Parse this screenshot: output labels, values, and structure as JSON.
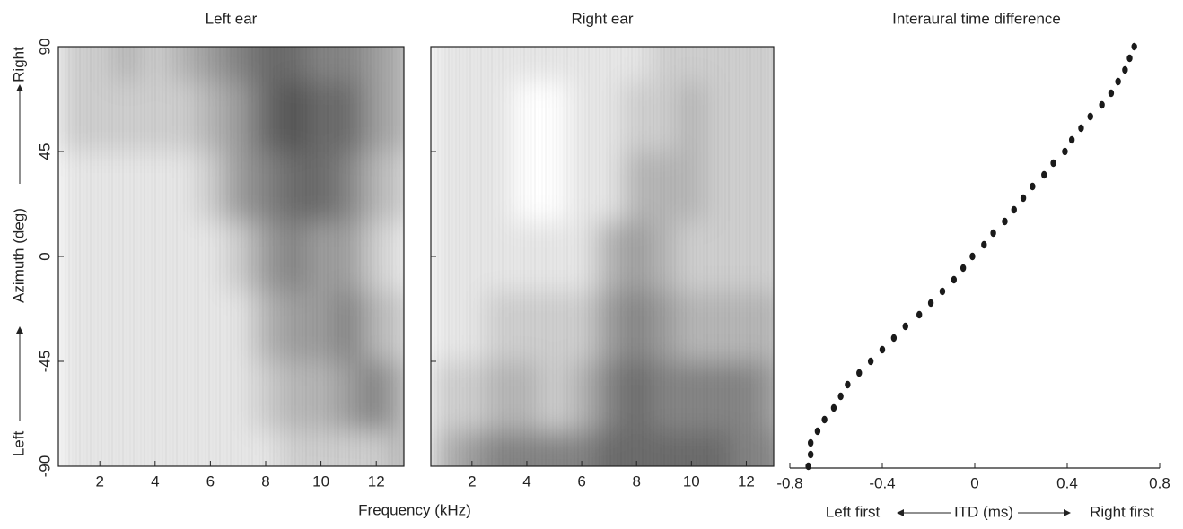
{
  "figure": {
    "xlabel": "Frequency (kHz)",
    "ylabel": "Azimuth (deg)",
    "ylabel_low": "Left",
    "ylabel_high": "Right"
  },
  "chart_data": [
    {
      "type": "heatmap",
      "title": "Left ear",
      "x": [
        1,
        2,
        3,
        4,
        5,
        6,
        7,
        8,
        9,
        10,
        11,
        12,
        13
      ],
      "y": [
        90,
        60,
        30,
        0,
        -30,
        -60,
        -90
      ],
      "z": [
        [
          2,
          2,
          3,
          2,
          3,
          4,
          5,
          6,
          6,
          5,
          5,
          4,
          3
        ],
        [
          2,
          2,
          2,
          2,
          2,
          3,
          4,
          6,
          7,
          6,
          6,
          4,
          3
        ],
        [
          1,
          1,
          1,
          1,
          1,
          2,
          4,
          5,
          6,
          6,
          5,
          3,
          2
        ],
        [
          1,
          1,
          1,
          1,
          1,
          1,
          2,
          4,
          5,
          4,
          4,
          2,
          1
        ],
        [
          1,
          1,
          1,
          1,
          1,
          1,
          1,
          3,
          4,
          4,
          5,
          3,
          2
        ],
        [
          1,
          1,
          1,
          1,
          1,
          1,
          1,
          2,
          3,
          3,
          4,
          5,
          3
        ],
        [
          1,
          1,
          1,
          1,
          1,
          1,
          1,
          1,
          2,
          2,
          2,
          2,
          3
        ]
      ],
      "zlim": [
        0,
        9
      ],
      "colors": [
        "#ffffff",
        "#222222"
      ],
      "xlim": [
        0.5,
        13
      ],
      "xticks": [
        2,
        4,
        6,
        8,
        10,
        12
      ],
      "ylim": [
        -90,
        90
      ],
      "yticks": [
        -90,
        -45,
        0,
        45,
        90
      ]
    },
    {
      "type": "heatmap",
      "title": "Right ear",
      "x": [
        1,
        2,
        3,
        4,
        5,
        6,
        7,
        8,
        9,
        10,
        11,
        12,
        13
      ],
      "y": [
        90,
        60,
        30,
        0,
        -30,
        -60,
        -90
      ],
      "z": [
        [
          1,
          1,
          1,
          1,
          1,
          1,
          1,
          1,
          2,
          2,
          2,
          2,
          2
        ],
        [
          1,
          1,
          1,
          0,
          0,
          1,
          1,
          2,
          2,
          3,
          2,
          2,
          2
        ],
        [
          1,
          1,
          1,
          0,
          0,
          1,
          1,
          3,
          3,
          3,
          2,
          2,
          2
        ],
        [
          1,
          1,
          1,
          1,
          1,
          1,
          3,
          4,
          3,
          2,
          2,
          2,
          2
        ],
        [
          1,
          1,
          2,
          2,
          2,
          2,
          4,
          5,
          4,
          3,
          3,
          3,
          3
        ],
        [
          2,
          2,
          3,
          3,
          2,
          3,
          5,
          6,
          5,
          5,
          5,
          5,
          4
        ],
        [
          3,
          4,
          5,
          5,
          5,
          5,
          6,
          6,
          6,
          6,
          6,
          5,
          5
        ]
      ],
      "zlim": [
        0,
        9
      ],
      "colors": [
        "#ffffff",
        "#222222"
      ],
      "xlim": [
        0.5,
        13
      ],
      "xticks": [
        2,
        4,
        6,
        8,
        10,
        12
      ],
      "ylim": [
        -90,
        90
      ],
      "yticks": [
        -90,
        -45,
        0,
        45,
        90
      ]
    },
    {
      "type": "scatter",
      "title": "Interaural time difference",
      "color": "#1a1a1a",
      "xlabel": "ITD (ms)",
      "xlabel_left": "Left first",
      "xlabel_right": "Right first",
      "x": [
        -0.72,
        -0.71,
        -0.71,
        -0.68,
        -0.65,
        -0.61,
        -0.58,
        -0.55,
        -0.5,
        -0.45,
        -0.4,
        -0.35,
        -0.3,
        -0.24,
        -0.19,
        -0.14,
        -0.09,
        -0.05,
        -0.01,
        0.04,
        0.08,
        0.13,
        0.17,
        0.21,
        0.25,
        0.3,
        0.34,
        0.39,
        0.42,
        0.46,
        0.5,
        0.55,
        0.59,
        0.62,
        0.65,
        0.67,
        0.69
      ],
      "y": [
        -90,
        -85,
        -80,
        -75,
        -70,
        -65,
        -60,
        -55,
        -50,
        -45,
        -40,
        -35,
        -30,
        -25,
        -20,
        -15,
        -10,
        -5,
        0,
        5,
        10,
        15,
        20,
        25,
        30,
        35,
        40,
        45,
        50,
        55,
        60,
        65,
        70,
        75,
        80,
        85,
        90
      ],
      "xlim": [
        -0.8,
        0.8
      ],
      "xticks": [
        -0.8,
        -0.4,
        0,
        0.4,
        0.8
      ],
      "ylim": [
        -90,
        90
      ]
    }
  ]
}
